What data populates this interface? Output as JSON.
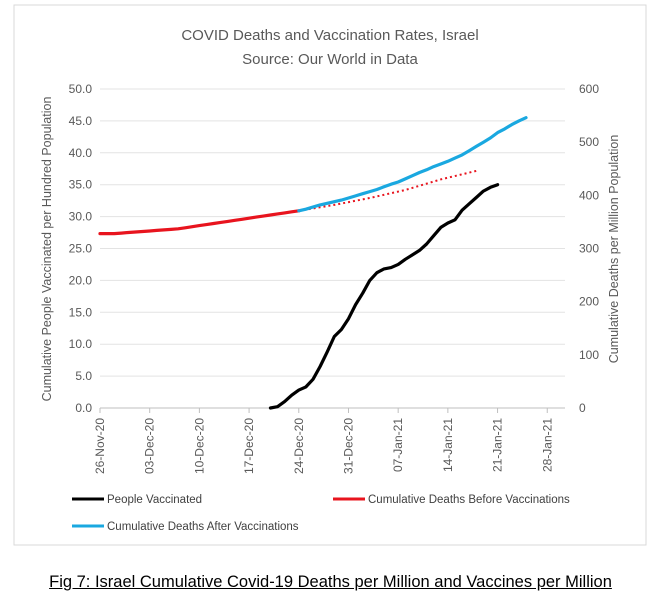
{
  "chart_data": {
    "type": "line",
    "title": "COVID Deaths and Vaccination Rates, Israel",
    "subtitle": "Source: Our World in Data",
    "caption": "Fig 7: Israel Cumulative Covid-19 Deaths per Million and Vaccines per Million",
    "xlabel": "",
    "x_start_date": "2020-11-26",
    "x_end_date": "2021-01-30",
    "x_ticks": [
      {
        "day": 0,
        "label": "26-Nov-20"
      },
      {
        "day": 7,
        "label": "03-Dec-20"
      },
      {
        "day": 14,
        "label": "10-Dec-20"
      },
      {
        "day": 21,
        "label": "17-Dec-20"
      },
      {
        "day": 28,
        "label": "24-Dec-20"
      },
      {
        "day": 35,
        "label": "31-Dec-20"
      },
      {
        "day": 42,
        "label": "07-Jan-21"
      },
      {
        "day": 49,
        "label": "14-Jan-21"
      },
      {
        "day": 56,
        "label": "21-Jan-21"
      },
      {
        "day": 63,
        "label": "28-Jan-21"
      }
    ],
    "y_left": {
      "label": "Cumulative People Vaccinated per Hundred Population",
      "lim": [
        0,
        50
      ],
      "ticks": [
        "0.0",
        "5.0",
        "10.0",
        "15.0",
        "20.0",
        "25.0",
        "30.0",
        "35.0",
        "40.0",
        "45.0",
        "50.0"
      ]
    },
    "y_right": {
      "label": "Cumulative Deaths per Million Population",
      "lim": [
        0,
        600
      ],
      "ticks": [
        "0",
        "100",
        "200",
        "300",
        "400",
        "500",
        "600"
      ]
    },
    "series": [
      {
        "name": "People Vaccinated",
        "axis": "left",
        "color": "#000000",
        "style": "solid",
        "points": [
          [
            24,
            0.0
          ],
          [
            25,
            0.2
          ],
          [
            26,
            1.0
          ],
          [
            27,
            2.0
          ],
          [
            28,
            2.8
          ],
          [
            29,
            3.3
          ],
          [
            30,
            4.5
          ],
          [
            31,
            6.5
          ],
          [
            32,
            8.8
          ],
          [
            33,
            11.2
          ],
          [
            34,
            12.3
          ],
          [
            35,
            14.0
          ],
          [
            36,
            16.2
          ],
          [
            37,
            18.0
          ],
          [
            38,
            20.0
          ],
          [
            39,
            21.2
          ],
          [
            40,
            21.8
          ],
          [
            41,
            22.0
          ],
          [
            42,
            22.5
          ],
          [
            43,
            23.3
          ],
          [
            44,
            24.0
          ],
          [
            45,
            24.7
          ],
          [
            46,
            25.7
          ],
          [
            47,
            27.0
          ],
          [
            48,
            28.3
          ],
          [
            49,
            29.0
          ],
          [
            50,
            29.5
          ],
          [
            51,
            31.0
          ],
          [
            52,
            32.0
          ],
          [
            53,
            33.0
          ],
          [
            54,
            34.0
          ],
          [
            55,
            34.6
          ],
          [
            56,
            35.0
          ]
        ]
      },
      {
        "name": "Cumulative Deaths Before Vaccinations",
        "axis": "right",
        "color": "#e8141e",
        "style": "solid",
        "points": [
          [
            0,
            328
          ],
          [
            1,
            328
          ],
          [
            2,
            328
          ],
          [
            3,
            329
          ],
          [
            4,
            330
          ],
          [
            5,
            331
          ],
          [
            6,
            332
          ],
          [
            7,
            333
          ],
          [
            8,
            334
          ],
          [
            9,
            335
          ],
          [
            10,
            336
          ],
          [
            11,
            337
          ],
          [
            12,
            339
          ],
          [
            13,
            341
          ],
          [
            14,
            343
          ],
          [
            15,
            345
          ],
          [
            16,
            347
          ],
          [
            17,
            349
          ],
          [
            18,
            351
          ],
          [
            19,
            353
          ],
          [
            20,
            355
          ],
          [
            21,
            357
          ],
          [
            22,
            359
          ],
          [
            23,
            361
          ],
          [
            24,
            363
          ],
          [
            25,
            365
          ],
          [
            26,
            367
          ],
          [
            27,
            369
          ],
          [
            28,
            371
          ]
        ]
      },
      {
        "name": "Cumulative Deaths Before Vaccinations (trend)",
        "axis": "right",
        "color": "#e8141e",
        "style": "dotted",
        "points": [
          [
            28,
            371
          ],
          [
            33,
            382
          ],
          [
            38,
            395
          ],
          [
            43,
            410
          ],
          [
            48,
            430
          ],
          [
            53,
            446
          ]
        ]
      },
      {
        "name": "Cumulative Deaths After Vaccinations",
        "axis": "right",
        "color": "#1aa8e0",
        "style": "solid",
        "points": [
          [
            28,
            371
          ],
          [
            29,
            374
          ],
          [
            30,
            378
          ],
          [
            31,
            382
          ],
          [
            32,
            385
          ],
          [
            33,
            388
          ],
          [
            34,
            391
          ],
          [
            35,
            395
          ],
          [
            36,
            399
          ],
          [
            37,
            403
          ],
          [
            38,
            407
          ],
          [
            39,
            411
          ],
          [
            40,
            416
          ],
          [
            41,
            421
          ],
          [
            42,
            425
          ],
          [
            43,
            431
          ],
          [
            44,
            437
          ],
          [
            45,
            443
          ],
          [
            46,
            448
          ],
          [
            47,
            454
          ],
          [
            48,
            459
          ],
          [
            49,
            464
          ],
          [
            50,
            470
          ],
          [
            51,
            476
          ],
          [
            52,
            484
          ],
          [
            53,
            492
          ],
          [
            54,
            500
          ],
          [
            55,
            508
          ],
          [
            56,
            518
          ],
          [
            57,
            525
          ],
          [
            58,
            533
          ],
          [
            59,
            540
          ],
          [
            60,
            546
          ]
        ]
      }
    ],
    "legend": [
      {
        "label": "People Vaccinated",
        "color": "#000000"
      },
      {
        "label": "Cumulative Deaths Before Vaccinations",
        "color": "#e8141e"
      },
      {
        "label": "Cumulative Deaths After Vaccinations",
        "color": "#1aa8e0"
      }
    ]
  }
}
